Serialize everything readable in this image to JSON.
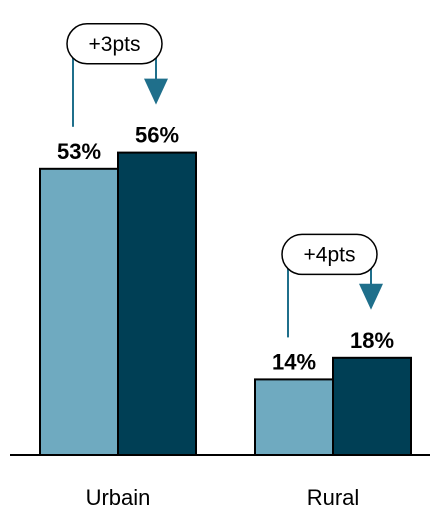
{
  "chart_data": {
    "type": "bar",
    "categories": [
      "Urbain",
      "Rural"
    ],
    "series": [
      {
        "values": [
          53,
          14
        ]
      },
      {
        "values": [
          56,
          18
        ]
      }
    ],
    "value_labels": [
      [
        "53%",
        "14%"
      ],
      [
        "56%",
        "18%"
      ]
    ],
    "annotations": [
      "+3pts",
      "+4pts"
    ],
    "ylim": [
      0,
      60
    ],
    "grid": false,
    "colors": [
      "#6FAAC0",
      "#003F55"
    ],
    "arrow_color": "#1F6F8B"
  }
}
